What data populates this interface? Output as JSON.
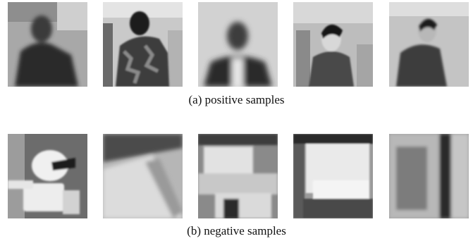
{
  "figure": {
    "rows": [
      {
        "caption": "(a) positive samples",
        "thumb_count": 5
      },
      {
        "caption": "(b) negative samples",
        "thumb_count": 5
      }
    ]
  }
}
